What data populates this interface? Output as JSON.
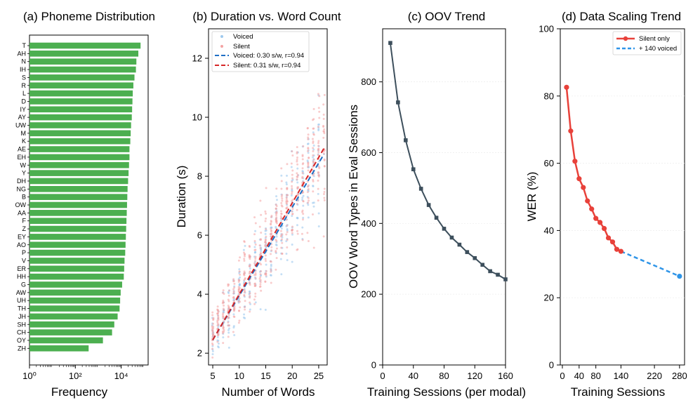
{
  "chart_data": [
    {
      "type": "bar",
      "orientation": "horizontal",
      "title": "(a) Phoneme Distribution",
      "xlabel": "Frequency",
      "ylabel": "",
      "x_scale": "log",
      "xlim": [
        1,
        150000
      ],
      "x_ticks": [
        1,
        100,
        10000
      ],
      "x_tick_labels": [
        "10⁰",
        "10²",
        "10⁴"
      ],
      "bar_color": "#4caf50",
      "categories": [
        "T",
        "AH",
        "N",
        "IH",
        "S",
        "R",
        "L",
        "D",
        "IY",
        "AY",
        "UW",
        "M",
        "K",
        "AE",
        "EH",
        "W",
        "Y",
        "DH",
        "NG",
        "B",
        "OW",
        "AA",
        "F",
        "Z",
        "EY",
        "AO",
        "P",
        "V",
        "ER",
        "HH",
        "G",
        "AW",
        "UH",
        "TH",
        "JH",
        "SH",
        "CH",
        "OY",
        "ZH"
      ],
      "values": [
        70000,
        56000,
        46000,
        44000,
        38000,
        34000,
        32000,
        31000,
        30000,
        29000,
        27000,
        26000,
        25000,
        23000,
        23000,
        22000,
        21000,
        20000,
        19000,
        18500,
        18000,
        17500,
        17000,
        16500,
        16000,
        15500,
        15000,
        14000,
        13500,
        13000,
        11000,
        9500,
        9000,
        8500,
        7000,
        5000,
        4000,
        1600,
        380
      ]
    },
    {
      "type": "scatter",
      "title": "(b) Duration vs. Word Count",
      "xlabel": "Number of Words",
      "ylabel": "Duration (s)",
      "xlim": [
        4.2,
        26.6
      ],
      "ylim": [
        1.6,
        13.0
      ],
      "x_ticks": [
        5,
        10,
        15,
        20,
        25
      ],
      "y_ticks": [
        2,
        4,
        6,
        8,
        10,
        12
      ],
      "legend_position": "top-left",
      "series": [
        {
          "name": "Voiced",
          "kind": "points",
          "color": "#9ec9ee",
          "base_slope": 0.3,
          "base_intercept": 1.0,
          "x_range": [
            5,
            25
          ]
        },
        {
          "name": "Silent",
          "kind": "points",
          "color": "#f4a3a3",
          "base_slope": 0.31,
          "base_intercept": 1.0,
          "x_range": [
            5,
            26
          ]
        },
        {
          "name": "Voiced: 0.30 s/w, r=0.94",
          "kind": "line",
          "color": "#1f6fc5",
          "x": [
            5,
            26
          ],
          "y": [
            2.45,
            8.75
          ]
        },
        {
          "name": "Silent: 0.31 s/w, r=0.94",
          "kind": "line",
          "color": "#d62728",
          "x": [
            5,
            26
          ],
          "y": [
            2.45,
            8.95
          ]
        }
      ]
    },
    {
      "type": "line",
      "title": "(c) OOV Trend",
      "xlabel": "Training Sessions (per modal)",
      "ylabel": "OOV Word Types in Eval Sessions",
      "xlim": [
        0,
        160
      ],
      "ylim": [
        0,
        950
      ],
      "x_ticks": [
        0,
        40,
        80,
        120,
        160
      ],
      "y_ticks": [
        0,
        200,
        400,
        600,
        800
      ],
      "series": [
        {
          "name": "",
          "color": "#3d4f5c",
          "x": [
            10,
            20,
            30,
            40,
            50,
            60,
            70,
            80,
            90,
            100,
            110,
            120,
            130,
            140,
            150,
            160
          ],
          "y": [
            910,
            742,
            635,
            553,
            498,
            452,
            416,
            385,
            360,
            340,
            319,
            302,
            283,
            265,
            255,
            242
          ]
        }
      ]
    },
    {
      "type": "line",
      "title": "(d) Data Scaling Trend",
      "xlabel": "Training Sessions",
      "ylabel": "WER (%)",
      "xlim": [
        -5,
        292
      ],
      "ylim": [
        0,
        100
      ],
      "x_ticks": [
        0,
        40,
        80,
        140,
        220,
        280
      ],
      "x_tick_labels": [
        "0",
        "40",
        "80",
        "140",
        "220",
        "280"
      ],
      "y_ticks": [
        0,
        20,
        40,
        60,
        80,
        100
      ],
      "legend_position": "top-right",
      "series": [
        {
          "name": "Silent only",
          "color": "#e8413a",
          "style": "solid",
          "x": [
            10,
            20,
            30,
            40,
            50,
            60,
            70,
            80,
            90,
            100,
            110,
            120,
            130,
            140
          ],
          "y": [
            82.6,
            69.6,
            60.6,
            55.4,
            52.8,
            48.8,
            46.4,
            43.6,
            42.4,
            40.6,
            37.8,
            36.6,
            34.4,
            33.8
          ]
        },
        {
          "name": "+ 140 voiced",
          "color": "#2f95e8",
          "style": "dashed",
          "x": [
            140,
            280
          ],
          "y": [
            33.8,
            26.4
          ]
        }
      ]
    }
  ]
}
